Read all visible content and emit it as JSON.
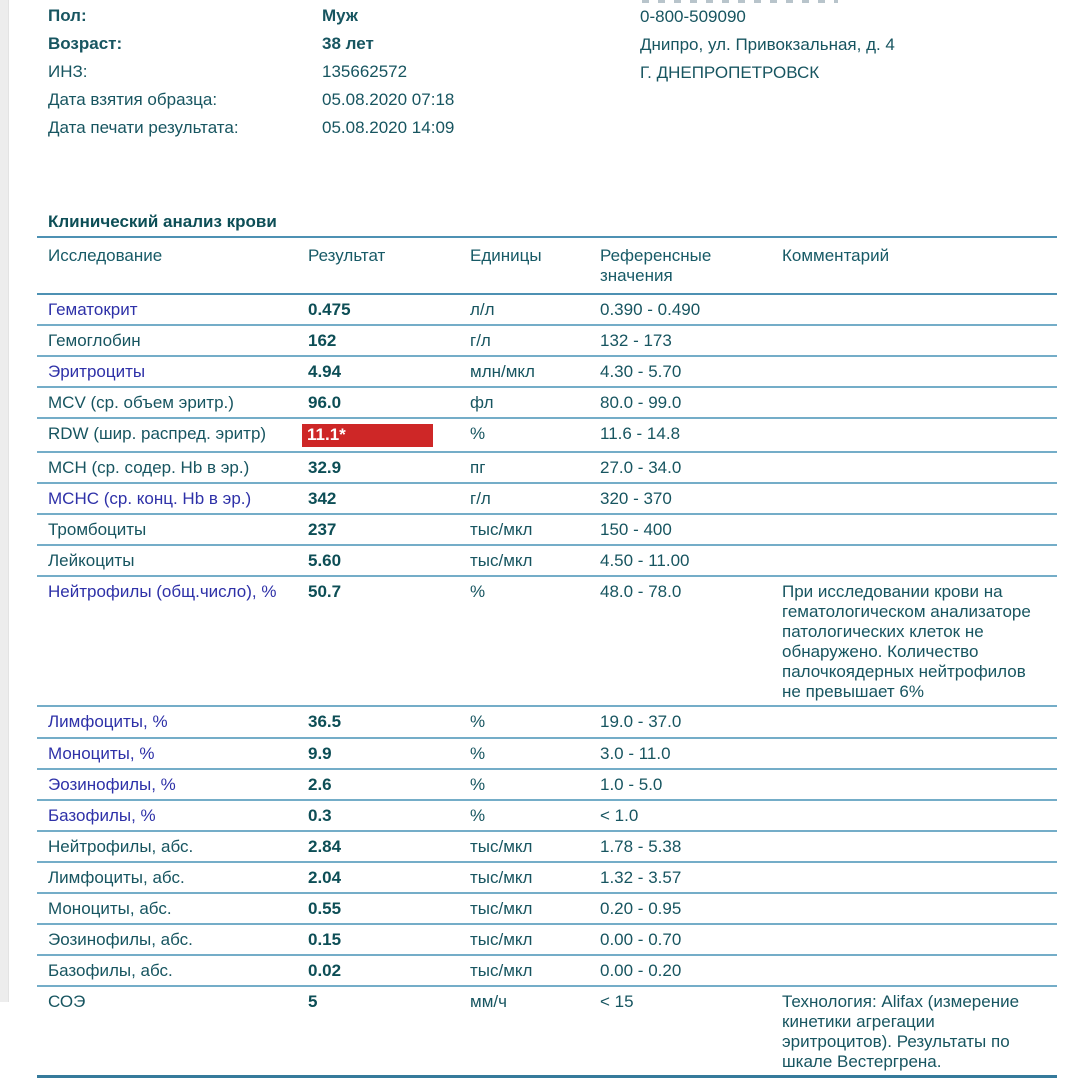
{
  "patient": {
    "rows": [
      {
        "label": "Пол:",
        "value": "Муж"
      },
      {
        "label": "Возраст:",
        "value": "38 лет"
      },
      {
        "label": "ИНЗ:",
        "value": "135662572"
      },
      {
        "label": "Дата взятия образца:",
        "value": "05.08.2020 07:18"
      },
      {
        "label": "Дата печати результата:",
        "value": "05.08.2020 14:09"
      }
    ]
  },
  "lab": {
    "phone": "0-800-509090",
    "address": "Днипро, ул. Привокзальная, д. 4",
    "city": "Г. ДНЕПРОПЕТРОВСК"
  },
  "table": {
    "title": "Клинический анализ крови",
    "columns": [
      "Исследование",
      "Результат",
      "Единицы",
      "Референсные значения",
      "Комментарий"
    ],
    "rows": [
      {
        "name": "Гематокрит",
        "link": true,
        "result": "0.475",
        "units": "л/л",
        "reference": "0.390 - 0.490",
        "comment": ""
      },
      {
        "name": "Гемоглобин",
        "link": false,
        "result": "162",
        "units": "г/л",
        "reference": "132 - 173",
        "comment": ""
      },
      {
        "name": "Эритроциты",
        "link": true,
        "result": "4.94",
        "units": "млн/мкл",
        "reference": "4.30 - 5.70",
        "comment": ""
      },
      {
        "name": "MCV (ср. объем эритр.)",
        "link": false,
        "result": "96.0",
        "units": "фл",
        "reference": "80.0 - 99.0",
        "comment": ""
      },
      {
        "name": "RDW (шир. распред. эритр)",
        "link": false,
        "result": "11.1*",
        "highlight": true,
        "units": "%",
        "reference": "11.6 - 14.8",
        "comment": ""
      },
      {
        "name": "MCH (ср. содер. Hb в эр.)",
        "link": false,
        "result": "32.9",
        "units": "пг",
        "reference": "27.0 - 34.0",
        "comment": ""
      },
      {
        "name": "MCHC (ср. конц. Hb в эр.)",
        "link": true,
        "result": "342",
        "units": "г/л",
        "reference": "320 - 370",
        "comment": ""
      },
      {
        "name": "Тромбоциты",
        "link": false,
        "result": "237",
        "units": "тыс/мкл",
        "reference": "150 - 400",
        "comment": ""
      },
      {
        "name": "Лейкоциты",
        "link": false,
        "result": "5.60",
        "units": "тыс/мкл",
        "reference": "4.50 - 11.00",
        "comment": ""
      },
      {
        "name": "Нейтрофилы (общ.число), %",
        "link": true,
        "result": "50.7",
        "units": "%",
        "reference": "48.0 - 78.0",
        "comment": "При исследовании крови на гематологическом анализаторе патологических клеток не обнаружено. Количество палочкоядерных нейтрофилов не превышает 6%"
      },
      {
        "name": "Лимфоциты, %",
        "link": true,
        "result": "36.5",
        "units": "%",
        "reference": "19.0 - 37.0",
        "comment": ""
      },
      {
        "name": "Моноциты, %",
        "link": true,
        "result": "9.9",
        "units": "%",
        "reference": "3.0 - 11.0",
        "comment": ""
      },
      {
        "name": "Эозинофилы, %",
        "link": true,
        "result": "2.6",
        "units": "%",
        "reference": "1.0 - 5.0",
        "comment": ""
      },
      {
        "name": "Базофилы, %",
        "link": true,
        "result": "0.3",
        "units": "%",
        "reference": "< 1.0",
        "comment": ""
      },
      {
        "name": "Нейтрофилы, абс.",
        "link": false,
        "result": "2.84",
        "units": "тыс/мкл",
        "reference": "1.78 - 5.38",
        "comment": ""
      },
      {
        "name": "Лимфоциты, абс.",
        "link": false,
        "result": "2.04",
        "units": "тыс/мкл",
        "reference": "1.32 - 3.57",
        "comment": ""
      },
      {
        "name": "Моноциты, абс.",
        "link": false,
        "result": "0.55",
        "units": "тыс/мкл",
        "reference": "0.20 - 0.95",
        "comment": ""
      },
      {
        "name": "Эозинофилы, абс.",
        "link": false,
        "result": "0.15",
        "units": "тыс/мкл",
        "reference": "0.00 - 0.70",
        "comment": ""
      },
      {
        "name": "Базофилы, абс.",
        "link": false,
        "result": "0.02",
        "units": "тыс/мкл",
        "reference": "0.00 - 0.20",
        "comment": ""
      },
      {
        "name": "СОЭ",
        "link": false,
        "result": "5",
        "units": "мм/ч",
        "reference": "< 15",
        "comment": "Технология: Alifax (измерение кинетики агрегации эритроцитов). Результаты по шкале Вестергрена."
      }
    ]
  },
  "colors": {
    "text_teal": "#175560",
    "value_teal": "#0d4e56",
    "link_blue": "#2e31a8",
    "alert_red": "#ce2727",
    "row_line": "#74adc8",
    "heavy_line": "#4d91b3"
  }
}
